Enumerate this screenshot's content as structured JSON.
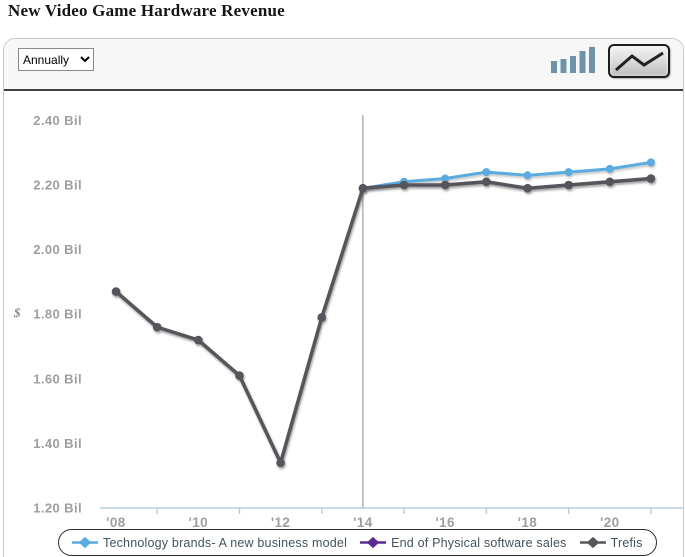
{
  "header": {
    "title": "New Video Game Hardware Revenue"
  },
  "toolbar": {
    "period_select": {
      "value": "Annually"
    },
    "bar_chart_icon": "bar-chart-type-toggle",
    "line_chart_icon": "line-chart-type-toggle-selected"
  },
  "chart_data": {
    "type": "line",
    "title": "New Video Game Hardware Revenue",
    "ylabel": "$",
    "y_unit": "Bil",
    "ylim": [
      1.2,
      2.4
    ],
    "grid": false,
    "legend_position": "bottom",
    "divider_year": 2014,
    "x_years": [
      2008,
      2009,
      2010,
      2011,
      2012,
      2013,
      2014,
      2015,
      2016,
      2017,
      2018,
      2019,
      2020,
      2021
    ],
    "x_labels": [
      {
        "year": 2008,
        "label": "'08"
      },
      {
        "year": 2010,
        "label": "'10"
      },
      {
        "year": 2012,
        "label": "'12"
      },
      {
        "year": 2014,
        "label": "'14"
      },
      {
        "year": 2016,
        "label": "'16"
      },
      {
        "year": 2018,
        "label": "'18"
      },
      {
        "year": 2020,
        "label": "'20"
      }
    ],
    "x_axis_ticks_years": [
      2009,
      2011,
      2013,
      2015,
      2017,
      2019,
      2021
    ],
    "y_ticks": [
      {
        "value": 2.4,
        "label": "2.40 Bil"
      },
      {
        "value": 2.2,
        "label": "2.20 Bil"
      },
      {
        "value": 2.0,
        "label": "2.00 Bil"
      },
      {
        "value": 1.8,
        "label": "1.80 Bil"
      },
      {
        "value": 1.6,
        "label": "1.60 Bil"
      },
      {
        "value": 1.4,
        "label": "1.40 Bil"
      },
      {
        "value": 1.2,
        "label": "1.20 Bil"
      }
    ],
    "series": [
      {
        "name": "Technology brands- A new business model",
        "color": "#5aabe0",
        "values": [
          null,
          null,
          null,
          null,
          null,
          null,
          2.19,
          2.21,
          2.22,
          2.24,
          2.23,
          2.24,
          2.25,
          2.27
        ]
      },
      {
        "name": "End of Physical software sales",
        "color": "#5c2d91",
        "values": [
          1.87,
          1.76,
          1.72,
          1.61,
          1.34,
          1.79,
          2.19,
          2.2,
          2.2,
          2.21,
          2.19,
          2.2,
          2.21,
          2.22
        ]
      },
      {
        "name": "Trefis",
        "color": "#55555b",
        "values": [
          1.87,
          1.76,
          1.72,
          1.61,
          1.34,
          1.79,
          2.19,
          2.2,
          2.2,
          2.21,
          2.19,
          2.2,
          2.21,
          2.22
        ]
      }
    ]
  }
}
